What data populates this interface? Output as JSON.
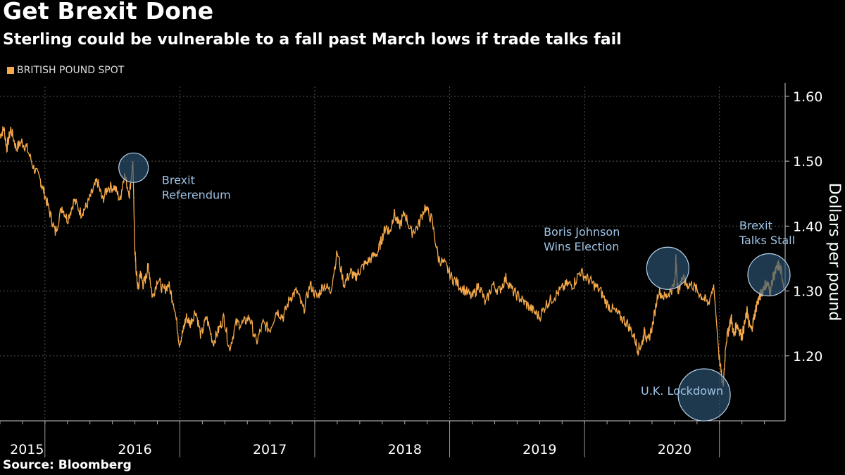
{
  "title": "Get Brexit Done",
  "subtitle": "Sterling could be vulnerable to a fall past March lows if trade talks fail",
  "source": "Source: Bloomberg",
  "colors": {
    "line": "#f5a94a",
    "grid": "#555555",
    "annotation_text": "#9fc3e6",
    "circle_fill": "#2e5677",
    "circle_stroke": "#b7d2ec"
  },
  "chart_data": {
    "type": "line",
    "title": "Get Brexit Done",
    "subtitle": "Sterling could be vulnerable to a fall past March lows if trade talks fail",
    "legend_label": "BRITISH POUND SPOT",
    "ylabel": "Dollars per pound",
    "xlabel": "",
    "ylim": [
      1.1,
      1.62
    ],
    "xlim": [
      2015.0,
      2020.65
    ],
    "yticks": [
      1.2,
      1.3,
      1.4,
      1.5,
      1.6
    ],
    "ytick_labels": [
      "1.20",
      "1.30",
      "1.40",
      "1.50",
      "1.60"
    ],
    "year_labels": [
      "2015",
      "2016",
      "2017",
      "2018",
      "2019",
      "2020"
    ],
    "year_label_positions": [
      2015.2,
      2016.0,
      2017.0,
      2018.0,
      2019.0,
      2020.0
    ],
    "year_boundaries": [
      2015.333,
      2016.333,
      2017.333,
      2018.333,
      2019.333,
      2020.333
    ],
    "grid": true,
    "series": [
      {
        "name": "BRITISH POUND SPOT",
        "x": [
          2015.0,
          2015.03,
          2015.05,
          2015.08,
          2015.12,
          2015.16,
          2015.2,
          2015.25,
          2015.3,
          2015.33,
          2015.37,
          2015.41,
          2015.46,
          2015.5,
          2015.55,
          2015.6,
          2015.64,
          2015.68,
          2015.72,
          2015.76,
          2015.8,
          2015.85,
          2015.89,
          2015.92,
          2015.96,
          2015.985,
          2016.0,
          2016.01,
          2016.025,
          2016.04,
          2016.06,
          2016.08,
          2016.1,
          2016.13,
          2016.17,
          2016.21,
          2016.25,
          2016.29,
          2016.33,
          2016.36,
          2016.38,
          2016.41,
          2016.45,
          2016.49,
          2016.53,
          2016.58,
          2016.62,
          2016.66,
          2016.7,
          2016.75,
          2016.8,
          2016.85,
          2016.9,
          2016.95,
          2017.0,
          2017.05,
          2017.1,
          2017.15,
          2017.2,
          2017.25,
          2017.3,
          2017.35,
          2017.4,
          2017.45,
          2017.5,
          2017.55,
          2017.6,
          2017.63,
          2017.66,
          2017.7,
          2017.75,
          2017.8,
          2017.83,
          2017.86,
          2017.89,
          2017.92,
          2017.96,
          2018.0,
          2018.05,
          2018.1,
          2018.15,
          2018.2,
          2018.25,
          2018.3,
          2018.35,
          2018.4,
          2018.45,
          2018.5,
          2018.55,
          2018.6,
          2018.65,
          2018.7,
          2018.75,
          2018.8,
          2018.85,
          2018.9,
          2018.95,
          2019.0,
          2019.05,
          2019.1,
          2019.15,
          2019.2,
          2019.25,
          2019.3,
          2019.35,
          2019.4,
          2019.45,
          2019.5,
          2019.55,
          2019.6,
          2019.65,
          2019.7,
          2019.73,
          2019.76,
          2019.78,
          2019.8,
          2019.84,
          2019.88,
          2019.93,
          2019.97,
          2020.0,
          2020.01,
          2020.02,
          2020.03,
          2020.04,
          2020.06,
          2020.09,
          2020.13,
          2020.17,
          2020.21,
          2020.25,
          2020.29,
          2020.33,
          2020.36,
          2020.38,
          2020.4,
          2020.42,
          2020.44,
          2020.46,
          2020.48,
          2020.5,
          2020.52,
          2020.54
        ],
        "values": [
          1.54,
          1.55,
          1.52,
          1.55,
          1.52,
          1.53,
          1.52,
          1.49,
          1.47,
          1.45,
          1.42,
          1.39,
          1.43,
          1.41,
          1.44,
          1.42,
          1.43,
          1.45,
          1.47,
          1.44,
          1.46,
          1.46,
          1.44,
          1.48,
          1.45,
          1.5,
          1.36,
          1.33,
          1.3,
          1.33,
          1.31,
          1.32,
          1.34,
          1.29,
          1.32,
          1.3,
          1.31,
          1.28,
          1.22,
          1.24,
          1.26,
          1.25,
          1.27,
          1.23,
          1.26,
          1.22,
          1.24,
          1.26,
          1.21,
          1.25,
          1.25,
          1.26,
          1.22,
          1.25,
          1.24,
          1.27,
          1.26,
          1.29,
          1.3,
          1.27,
          1.31,
          1.29,
          1.31,
          1.3,
          1.36,
          1.31,
          1.33,
          1.32,
          1.33,
          1.34,
          1.35,
          1.36,
          1.38,
          1.4,
          1.39,
          1.42,
          1.4,
          1.42,
          1.39,
          1.4,
          1.43,
          1.41,
          1.35,
          1.34,
          1.32,
          1.31,
          1.3,
          1.29,
          1.31,
          1.28,
          1.31,
          1.3,
          1.32,
          1.3,
          1.29,
          1.28,
          1.27,
          1.26,
          1.28,
          1.29,
          1.3,
          1.31,
          1.31,
          1.33,
          1.32,
          1.31,
          1.3,
          1.28,
          1.27,
          1.26,
          1.25,
          1.23,
          1.21,
          1.22,
          1.24,
          1.22,
          1.25,
          1.3,
          1.29,
          1.3,
          1.31,
          1.35,
          1.31,
          1.3,
          1.31,
          1.32,
          1.31,
          1.31,
          1.3,
          1.29,
          1.28,
          1.31,
          1.2,
          1.15,
          1.22,
          1.24,
          1.26,
          1.23,
          1.25,
          1.24,
          1.23,
          1.25,
          1.27
        ],
        "x_late": [
          2020.55,
          2020.57,
          2020.59,
          2020.61,
          2020.63,
          2020.65,
          2020.67,
          2020.69,
          2020.71,
          2020.73,
          2020.75,
          2020.77,
          2020.79,
          2020.81
        ],
        "values_late": [
          1.25,
          1.24,
          1.26,
          1.28,
          1.29,
          1.3,
          1.31,
          1.31,
          1.3,
          1.32,
          1.33,
          1.34,
          1.33,
          1.31
        ]
      }
    ],
    "annotations": [
      {
        "label_lines": [
          "Brexit",
          "Referendum"
        ],
        "x": 2015.99,
        "y": 1.49,
        "label_x": 2016.2,
        "label_y": 1.465,
        "size": "small"
      },
      {
        "label_lines": [
          "Boris Johnson",
          "Wins Election"
        ],
        "x": 2019.95,
        "y": 1.335,
        "label_x": 2019.03,
        "label_y": 1.385,
        "size": "medium"
      },
      {
        "label_lines": [
          "U.K. Lockdown"
        ],
        "x": 2020.22,
        "y": 1.14,
        "label_x": 2019.75,
        "label_y": 1.14,
        "size": "large"
      },
      {
        "label_lines": [
          "Brexit",
          "Talks Stall"
        ],
        "x": 2020.7,
        "y": 1.325,
        "label_x": 2020.48,
        "label_y": 1.395,
        "size": "medium"
      }
    ]
  }
}
